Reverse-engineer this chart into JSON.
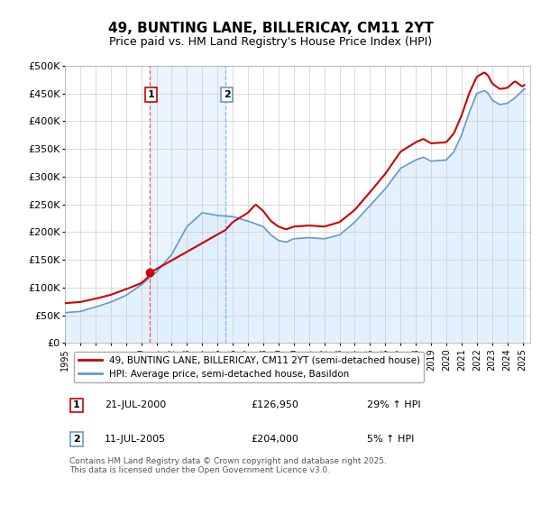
{
  "title": "49, BUNTING LANE, BILLERICAY, CM11 2YT",
  "subtitle": "Price paid vs. HM Land Registry's House Price Index (HPI)",
  "ylim": [
    0,
    500000
  ],
  "yticks": [
    0,
    50000,
    100000,
    150000,
    200000,
    250000,
    300000,
    350000,
    400000,
    450000,
    500000
  ],
  "ytick_labels": [
    "£0",
    "£50K",
    "£100K",
    "£150K",
    "£200K",
    "£250K",
    "£300K",
    "£350K",
    "£400K",
    "£450K",
    "£500K"
  ],
  "xlim_start": 1995.0,
  "xlim_end": 2025.5,
  "xticks": [
    1995,
    1996,
    1997,
    1998,
    1999,
    2000,
    2001,
    2002,
    2003,
    2004,
    2005,
    2006,
    2007,
    2008,
    2009,
    2010,
    2011,
    2012,
    2013,
    2014,
    2015,
    2016,
    2017,
    2018,
    2019,
    2020,
    2021,
    2022,
    2023,
    2024,
    2025
  ],
  "background_color": "#ffffff",
  "plot_bg_color": "#ffffff",
  "grid_color": "#cccccc",
  "red_line_color": "#cc0000",
  "blue_line_color": "#6699cc",
  "blue_fill_color": "#ddeeff",
  "transaction1_x": 2000.55,
  "transaction1_y": 126950,
  "transaction2_x": 2005.53,
  "transaction2_y": 204000,
  "transaction1_vline_color": "#ff4444",
  "transaction2_vline_color": "#6699cc",
  "legend_line1": "49, BUNTING LANE, BILLERICAY, CM11 2YT (semi-detached house)",
  "legend_line2": "HPI: Average price, semi-detached house, Basildon",
  "annotation1_date": "21-JUL-2000",
  "annotation1_price": "£126,950",
  "annotation1_hpi": "29% ↑ HPI",
  "annotation2_date": "11-JUL-2005",
  "annotation2_price": "£204,000",
  "annotation2_hpi": "5% ↑ HPI",
  "footer": "Contains HM Land Registry data © Crown copyright and database right 2025.\nThis data is licensed under the Open Government Licence v3.0."
}
